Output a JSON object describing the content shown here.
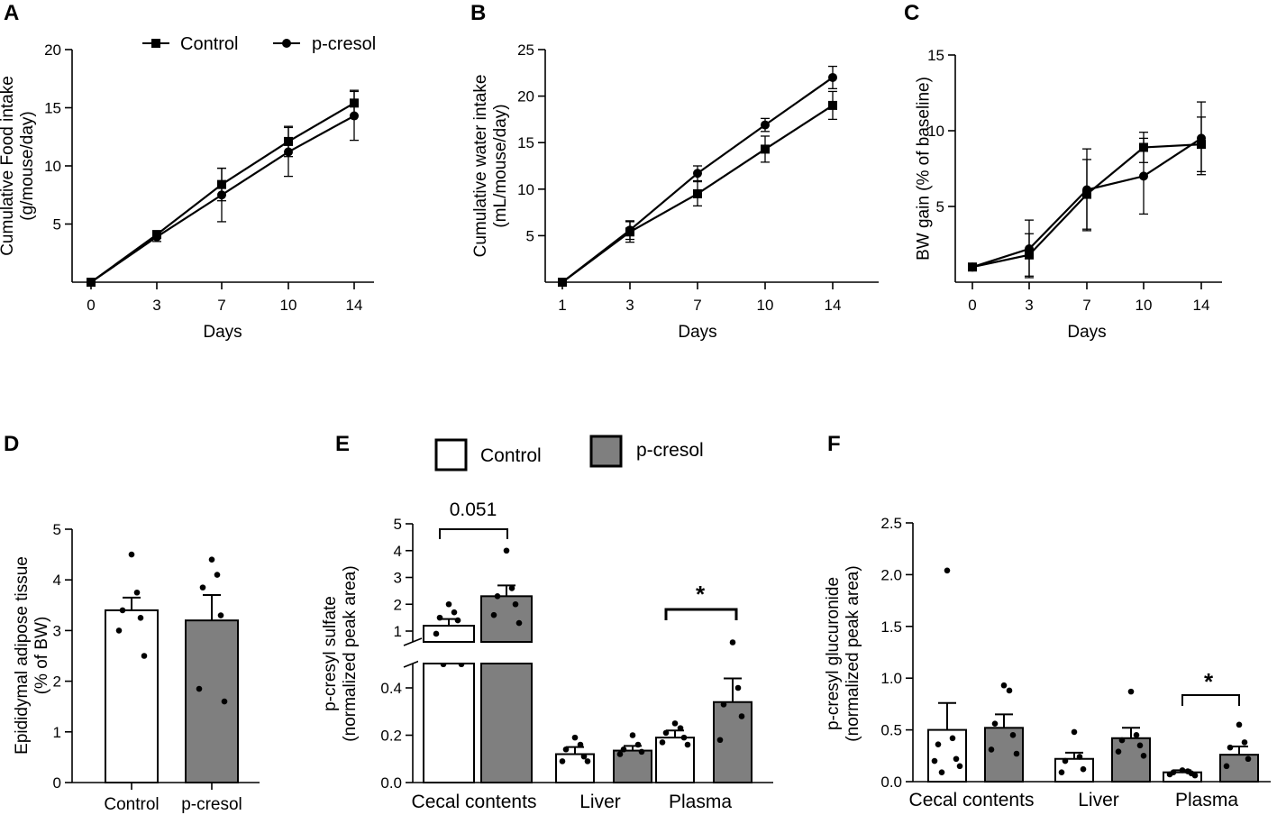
{
  "panels": [
    {
      "letter": "A"
    },
    {
      "letter": "B"
    },
    {
      "letter": "C"
    },
    {
      "letter": "D"
    },
    {
      "letter": "E"
    },
    {
      "letter": "F"
    }
  ],
  "legend_top": {
    "control": "Control",
    "pcresol": "p-cresol"
  },
  "legend_bar": {
    "control": "Control",
    "pcresol": "p-cresol"
  },
  "colors": {
    "control_fill": "#ffffff",
    "pcresol_fill": "#7f7f7f",
    "line": "#000000"
  },
  "chart_data": [
    {
      "id": "A",
      "type": "line",
      "xlabel": "Days",
      "ylabel": "Cumulative Food intake\n(g/mouse/day)",
      "x": [
        0,
        3,
        7,
        10,
        14
      ],
      "xticks": [
        "0",
        "3",
        "7",
        "10",
        "14"
      ],
      "ylim": [
        0,
        20
      ],
      "yticks": [
        5,
        10,
        15,
        20
      ],
      "series": [
        {
          "name": "Control",
          "marker": "square",
          "values": [
            0,
            4.1,
            8.4,
            12.1,
            15.4
          ],
          "err": [
            0,
            0.3,
            1.4,
            1.3,
            1.1
          ]
        },
        {
          "name": "p-cresol",
          "marker": "circle",
          "values": [
            0,
            3.9,
            7.5,
            11.2,
            14.3
          ],
          "err": [
            0,
            0.4,
            2.3,
            2.1,
            2.1
          ]
        }
      ]
    },
    {
      "id": "B",
      "type": "line",
      "xlabel": "Days",
      "ylabel": "Cumulative water intake\n(mL/mouse/day)",
      "x": [
        1,
        3,
        7,
        10,
        14
      ],
      "xticks": [
        "1",
        "3",
        "7",
        "10",
        "14"
      ],
      "ylim": [
        0,
        25
      ],
      "yticks": [
        5,
        10,
        15,
        20,
        25
      ],
      "series": [
        {
          "name": "Control",
          "marker": "square",
          "values": [
            0,
            5.4,
            9.5,
            14.3,
            19.0
          ],
          "err": [
            0,
            1.1,
            1.3,
            1.4,
            1.5
          ]
        },
        {
          "name": "p-cresol",
          "marker": "circle",
          "values": [
            0,
            5.6,
            11.7,
            16.9,
            22.0
          ],
          "err": [
            0,
            1.0,
            0.8,
            0.7,
            1.2
          ]
        }
      ]
    },
    {
      "id": "C",
      "type": "line",
      "xlabel": "Days",
      "ylabel": "BW gain (% of baseline)",
      "x": [
        0,
        3,
        7,
        10,
        14
      ],
      "xticks": [
        "0",
        "3",
        "7",
        "10",
        "14"
      ],
      "ylim": [
        0,
        15
      ],
      "yticks": [
        5,
        10,
        15
      ],
      "series": [
        {
          "name": "Control",
          "marker": "square",
          "values": [
            1.0,
            1.8,
            5.8,
            8.9,
            9.1
          ],
          "err": [
            0,
            1.4,
            2.3,
            1.0,
            1.8
          ]
        },
        {
          "name": "p-cresol",
          "marker": "circle",
          "values": [
            1.0,
            2.2,
            6.1,
            7.0,
            9.5
          ],
          "err": [
            0,
            1.9,
            2.7,
            2.5,
            2.4
          ]
        }
      ]
    },
    {
      "id": "D",
      "type": "bar",
      "ylabel": "Epididymal adipose tissue\n(% of BW)",
      "categories": [
        "Control",
        "p-cresol"
      ],
      "ylim": [
        0,
        5
      ],
      "yticks": [
        "0",
        "1",
        "2",
        "3",
        "4",
        "5"
      ],
      "values": [
        3.4,
        3.2
      ],
      "err": [
        0.25,
        0.5
      ],
      "points": [
        [
          4.5,
          3.75,
          3.4,
          3.25,
          3.0,
          2.5
        ],
        [
          4.4,
          4.1,
          3.85,
          3.3,
          1.85,
          1.6
        ]
      ]
    },
    {
      "id": "E",
      "type": "bar",
      "ylabel": "p-cresyl sulfate\n(normalized peak area)",
      "categories": [
        "Cecal contents",
        "Liver",
        "Plasma"
      ],
      "yticks_upper": [
        "1",
        "2",
        "3",
        "4",
        "5"
      ],
      "yticks_lower": [
        "0.0",
        "0.2",
        "0.4"
      ],
      "series": [
        {
          "name": "Control",
          "values": [
            1.2,
            0.12,
            0.19
          ],
          "err": [
            0.25,
            0.03,
            0.03
          ],
          "points": [
            [
              2.0,
              1.7,
              1.5,
              1.4,
              0.9,
              0.5,
              0.5
            ],
            [
              0.19,
              0.16,
              0.14,
              0.11,
              0.09,
              0.09
            ],
            [
              0.25,
              0.23,
              0.21,
              0.19,
              0.17,
              0.16
            ]
          ]
        },
        {
          "name": "p-cresol",
          "values": [
            2.3,
            0.135,
            0.34
          ],
          "err": [
            0.4,
            0.02,
            0.1
          ],
          "points": [
            [
              4.0,
              2.6,
              2.3,
              2.0,
              1.6,
              1.3
            ],
            [
              0.2,
              0.16,
              0.14,
              0.13,
              0.12
            ],
            [
              0.58,
              0.4,
              0.33,
              0.28,
              0.18
            ]
          ]
        }
      ],
      "annotations": [
        {
          "group": "Cecal contents",
          "label": "0.051"
        },
        {
          "group": "Plasma",
          "label": "*"
        }
      ]
    },
    {
      "id": "F",
      "type": "bar",
      "ylabel": "p-cresyl glucuronide\n(normalized peak area)",
      "categories": [
        "Cecal contents",
        "Liver",
        "Plasma"
      ],
      "ylim": [
        0,
        2.5
      ],
      "yticks": [
        "0.0",
        "0.5",
        "1.0",
        "1.5",
        "2.0",
        "2.5"
      ],
      "series": [
        {
          "name": "Control",
          "values": [
            0.5,
            0.22,
            0.09
          ],
          "err": [
            0.26,
            0.06,
            0.02
          ],
          "points": [
            [
              2.04,
              0.42,
              0.36,
              0.22,
              0.2,
              0.15,
              0.09
            ],
            [
              0.48,
              0.24,
              0.2,
              0.12,
              0.09
            ],
            [
              0.11,
              0.1,
              0.09,
              0.08,
              0.07,
              0.06
            ]
          ]
        },
        {
          "name": "p-cresol",
          "values": [
            0.52,
            0.42,
            0.26
          ],
          "err": [
            0.13,
            0.1,
            0.08
          ],
          "points": [
            [
              0.93,
              0.88,
              0.56,
              0.45,
              0.31,
              0.27
            ],
            [
              0.87,
              0.45,
              0.4,
              0.35,
              0.29,
              0.25
            ],
            [
              0.55,
              0.38,
              0.33,
              0.22,
              0.15
            ]
          ]
        }
      ],
      "annotations": [
        {
          "group": "Plasma",
          "label": "*"
        }
      ]
    }
  ]
}
